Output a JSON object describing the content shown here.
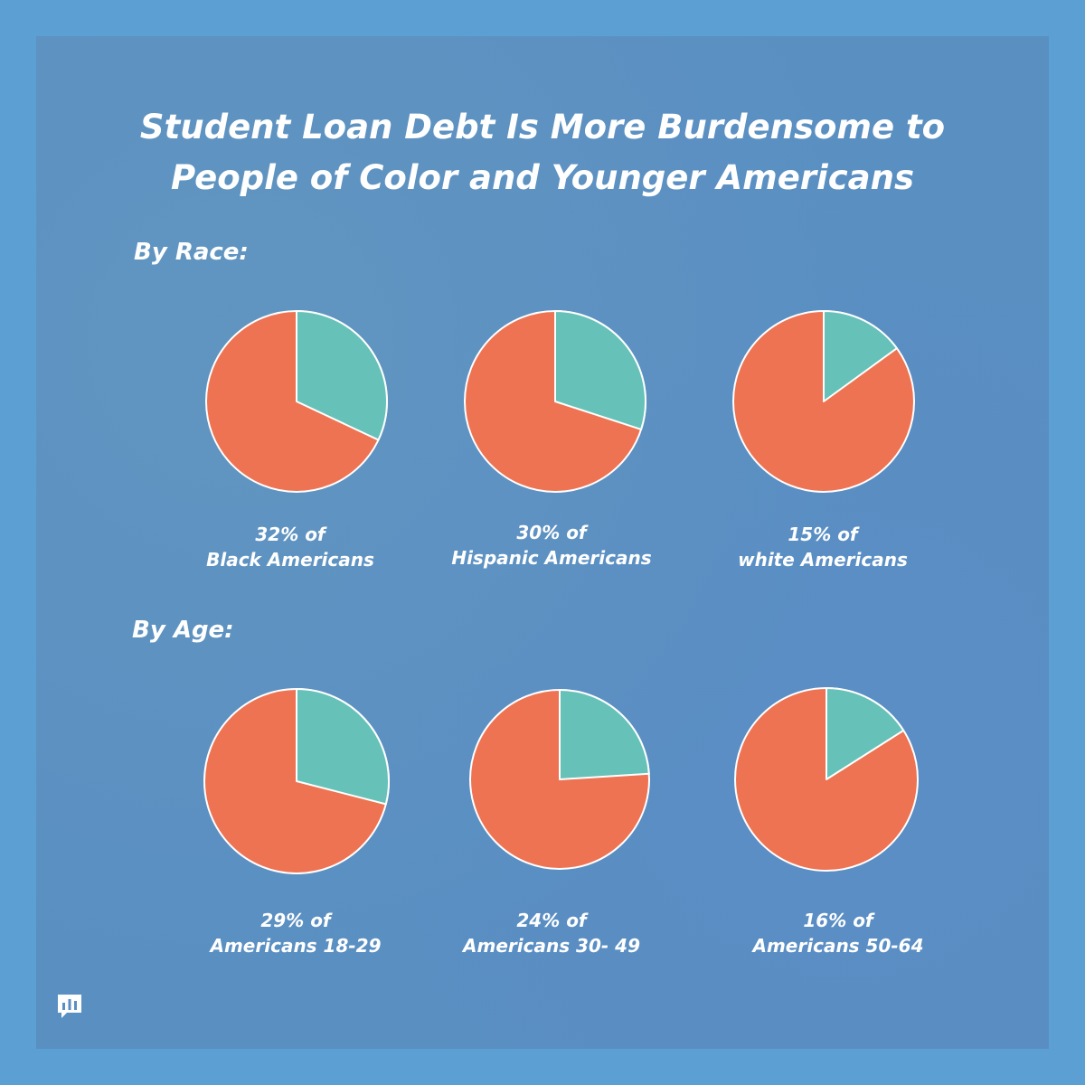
{
  "title": {
    "line1": "Student Loan Debt Is More Burdensome to",
    "line2": "People of Color and Younger Americans"
  },
  "sections": {
    "race_label": "By Race:",
    "age_label": "By Age:"
  },
  "colors": {
    "background": "#5b9fd3",
    "share_with_debt": "#66c2b8",
    "remainder": "#ee7352",
    "stroke": "#ffffff"
  },
  "chart_data": [
    {
      "type": "pie",
      "group": "By Race",
      "value_percent": 32,
      "caption_line1": "32% of",
      "caption_line2": "Black Americans"
    },
    {
      "type": "pie",
      "group": "By Race",
      "value_percent": 30,
      "caption_line1": "30% of",
      "caption_line2": "Hispanic Americans"
    },
    {
      "type": "pie",
      "group": "By Race",
      "value_percent": 15,
      "caption_line1": "15% of",
      "caption_line2": "white Americans"
    },
    {
      "type": "pie",
      "group": "By Age",
      "value_percent": 29,
      "caption_line1": "29% of",
      "caption_line2": "Americans 18-29"
    },
    {
      "type": "pie",
      "group": "By Age",
      "value_percent": 24,
      "caption_line1": "24% of",
      "caption_line2": "Americans 30- 49"
    },
    {
      "type": "pie",
      "group": "By Age",
      "value_percent": 16,
      "caption_line1": "16% of",
      "caption_line2": "Americans 50-64"
    }
  ],
  "logo_icon": "bar-chart-speech-bubble-icon"
}
